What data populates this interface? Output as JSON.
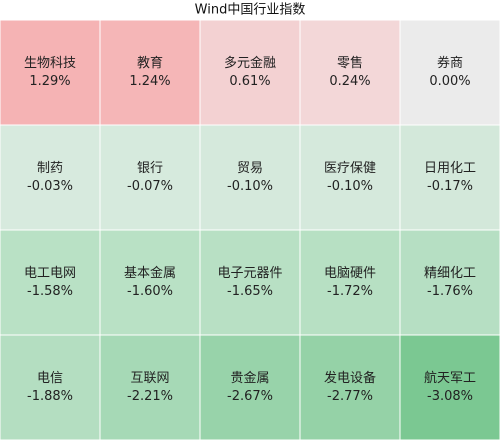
{
  "chart_data": {
    "type": "heatmap",
    "title": "Wind中国行业指数",
    "categories": [
      "生物科技",
      "教育",
      "多元金融",
      "零售",
      "券商",
      "制药",
      "银行",
      "贸易",
      "医疗保健",
      "日用化工",
      "电工电网",
      "基本金属",
      "电子元器件",
      "电脑硬件",
      "精细化工",
      "电信",
      "互联网",
      "贵金属",
      "发电设备",
      "航天军工"
    ],
    "values": [
      1.29,
      1.24,
      0.61,
      0.24,
      0.0,
      -0.03,
      -0.07,
      -0.1,
      -0.1,
      -0.17,
      -1.58,
      -1.6,
      -1.65,
      -1.72,
      -1.76,
      -1.88,
      -2.21,
      -2.67,
      -2.77,
      -3.08
    ],
    "value_labels": [
      "1.29%",
      "1.24%",
      "0.61%",
      "0.24%",
      "0.00%",
      "-0.03%",
      "-0.07%",
      "-0.10%",
      "-0.10%",
      "-0.17%",
      "-1.58%",
      "-1.60%",
      "-1.65%",
      "-1.72%",
      "-1.76%",
      "-1.88%",
      "-2.21%",
      "-2.67%",
      "-2.77%",
      "-3.08%"
    ],
    "colors": [
      "#f5b3b4",
      "#f5b6b7",
      "#f3d1d2",
      "#f3d7d8",
      "#ebebeb",
      "#d7eade",
      "#d6eadd",
      "#d5e9dc",
      "#d5e9dc",
      "#d3e8da",
      "#b9e1c5",
      "#b9e1c5",
      "#b8e0c4",
      "#b7e0c3",
      "#b6dfc3",
      "#b4dec1",
      "#a6d9b6",
      "#98d3aa",
      "#95d2a7",
      "#7bc892"
    ]
  }
}
